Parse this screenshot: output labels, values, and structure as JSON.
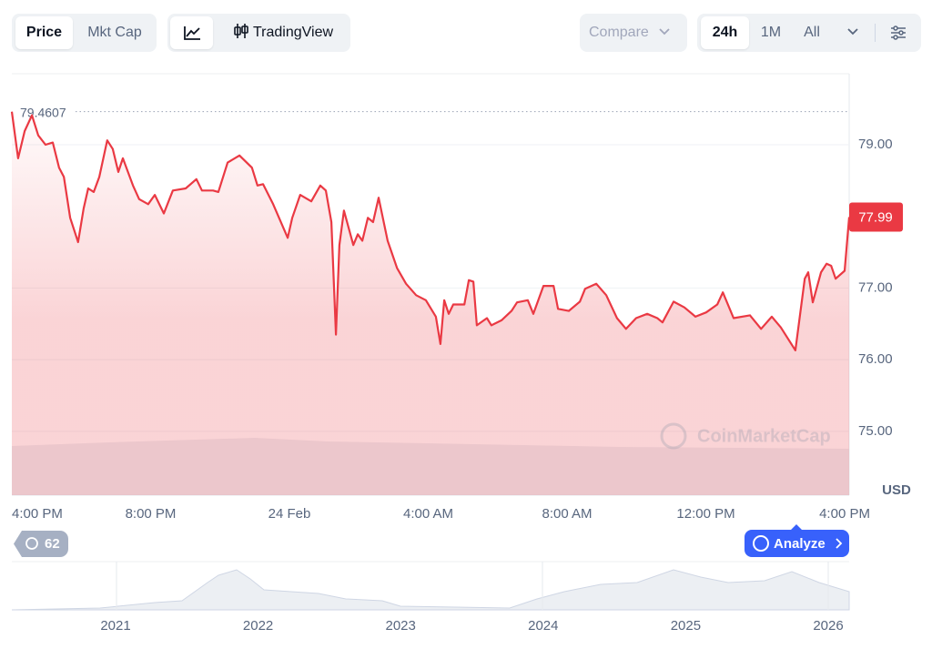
{
  "toolbar": {
    "price": "Price",
    "mkt_cap": "Mkt Cap",
    "tradingview": "TradingView",
    "compare": "Compare",
    "range_24h": "24h",
    "range_1m": "1M",
    "range_all": "All"
  },
  "chart_data": {
    "type": "line",
    "color": "#ea3943",
    "x": [
      0.0,
      0.18,
      0.37,
      0.58,
      0.76,
      0.97,
      1.18,
      1.36,
      1.5,
      1.68,
      1.91,
      2.07,
      2.2,
      2.36,
      2.52,
      2.75,
      2.91,
      3.07,
      3.2,
      3.49,
      3.67,
      3.93,
      4.12,
      4.38,
      4.64,
      5.01,
      5.32,
      5.48,
      5.8,
      5.95,
      6.22,
      6.56,
      6.92,
      7.08,
      7.24,
      7.53,
      7.95,
      8.08,
      8.31,
      8.63,
      8.89,
      9.05,
      9.21,
      9.34,
      9.44,
      9.57,
      9.84,
      9.97,
      10.1,
      10.26,
      10.41,
      10.57,
      10.83,
      11.1,
      11.36,
      11.65,
      11.93,
      12.22,
      12.35,
      12.46,
      12.59,
      12.72,
      13.04,
      13.17,
      13.3,
      13.4,
      13.69,
      13.82,
      14.11,
      14.4,
      14.56,
      14.87,
      15.03,
      15.32,
      15.61,
      15.74,
      16.05,
      16.37,
      16.52,
      16.84,
      17.13,
      17.44,
      17.7,
      17.99,
      18.31,
      18.6,
      18.75,
      19.07,
      19.38,
      19.7,
      20.01,
      20.33,
      20.49,
      20.8,
      21.27,
      21.59,
      21.9,
      22.16,
      22.58,
      22.85,
      22.95,
      23.08,
      23.32,
      23.48,
      23.61,
      23.74,
      24.0,
      24.13
    ],
    "values": [
      79.46,
      78.81,
      79.19,
      79.41,
      79.13,
      79.0,
      79.03,
      78.68,
      78.55,
      77.98,
      77.64,
      78.11,
      78.39,
      78.34,
      78.55,
      79.06,
      78.94,
      78.62,
      78.81,
      78.43,
      78.24,
      78.17,
      78.3,
      78.04,
      78.36,
      78.39,
      78.52,
      78.36,
      78.36,
      78.34,
      78.75,
      78.85,
      78.68,
      78.43,
      78.45,
      78.17,
      77.7,
      77.98,
      78.3,
      78.21,
      78.43,
      78.36,
      77.92,
      76.35,
      77.6,
      78.08,
      77.6,
      77.75,
      77.66,
      77.98,
      77.92,
      78.26,
      77.66,
      77.28,
      77.06,
      76.9,
      76.83,
      76.6,
      76.22,
      76.83,
      76.64,
      76.77,
      76.77,
      77.11,
      77.09,
      76.48,
      76.58,
      76.48,
      76.55,
      76.68,
      76.8,
      76.83,
      76.64,
      77.03,
      77.03,
      76.71,
      76.68,
      76.81,
      76.99,
      77.06,
      76.9,
      76.58,
      76.43,
      76.58,
      76.64,
      76.58,
      76.52,
      76.81,
      76.73,
      76.6,
      76.66,
      76.77,
      76.94,
      76.58,
      76.62,
      76.43,
      76.6,
      76.45,
      76.13,
      77.13,
      77.22,
      76.8,
      77.22,
      77.34,
      77.31,
      77.13,
      77.24,
      77.99
    ],
    "xlim": [
      0,
      24.13
    ],
    "ylim": [
      74.11,
      79.99
    ],
    "xticks": [
      {
        "value": 0,
        "label": "4:00 PM"
      },
      {
        "value": 4,
        "label": "8:00 PM"
      },
      {
        "value": 8,
        "label": "24 Feb"
      },
      {
        "value": 12,
        "label": "4:00 AM"
      },
      {
        "value": 16,
        "label": "8:00 AM"
      },
      {
        "value": 20,
        "label": "12:00 PM"
      },
      {
        "value": 24,
        "label": "4:00 PM"
      }
    ],
    "yticks": [
      {
        "value": 75,
        "label": "75.00"
      },
      {
        "value": 76,
        "label": "76.00"
      },
      {
        "value": 77,
        "label": "77.00"
      },
      {
        "value": 79,
        "label": "79.00"
      }
    ],
    "high": 79.4607,
    "current": 77.99,
    "y_axis_label": "USD",
    "watermark": "CoinMarketCap",
    "grid": true
  },
  "footer": {
    "history_count": "62",
    "analyze": "Analyze"
  },
  "navigator": {
    "years": [
      "2021",
      "2022",
      "2023",
      "2024",
      "2025",
      "2026"
    ]
  }
}
